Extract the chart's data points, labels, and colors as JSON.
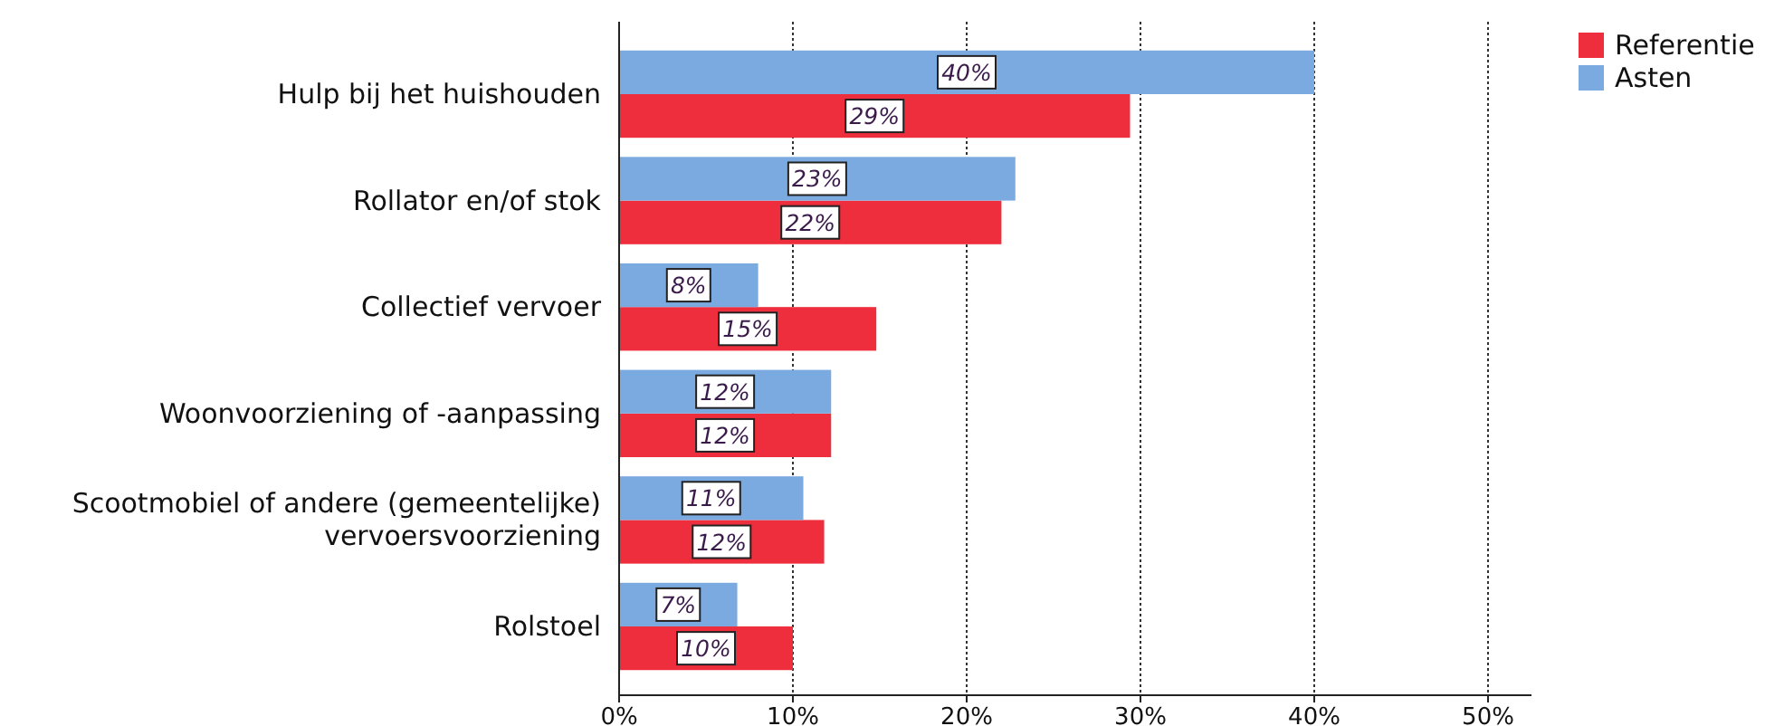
{
  "chart_data": {
    "type": "bar",
    "orientation": "horizontal",
    "categories": [
      "Hulp bij het huishouden",
      "Rollator en/of stok",
      "Collectief vervoer",
      "Woonvoorziening of -aanpassing",
      "Scootmobiel of andere (gemeentelijke) vervoersvoorziening",
      "Rolstoel"
    ],
    "series": [
      {
        "name": "Referentie",
        "color": "#ee2e3c",
        "values": [
          29.4,
          22.0,
          14.8,
          12.2,
          11.8,
          10.0
        ],
        "value_labels": [
          "29%",
          "22%",
          "15%",
          "12%",
          "12%",
          "10%"
        ]
      },
      {
        "name": "Asten",
        "color": "#7aaadf",
        "values": [
          40.0,
          22.8,
          8,
          12.2,
          10.6,
          6.8
        ],
        "value_labels": [
          "40%",
          "23%",
          "8%",
          "12%",
          "11%",
          "7%"
        ]
      }
    ],
    "xlim": [
      0,
      52.5
    ],
    "xticks": [
      {
        "value": 0,
        "label": "0%"
      },
      {
        "value": 10,
        "label": "10%"
      },
      {
        "value": 20,
        "label": "20%"
      },
      {
        "value": 30,
        "label": "30%"
      },
      {
        "value": 40,
        "label": "40%"
      },
      {
        "value": 50,
        "label": "50%"
      }
    ],
    "grid": "x",
    "legend": "top right"
  }
}
